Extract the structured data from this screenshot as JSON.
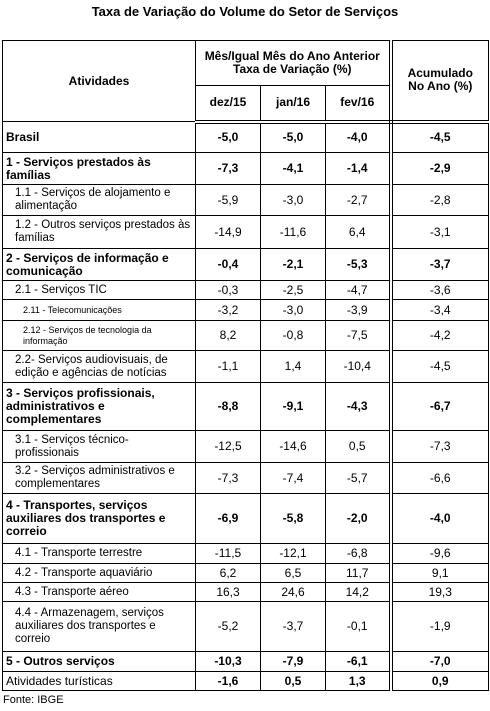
{
  "title": "Taxa de Variação do Volume do Setor de Serviços",
  "header": {
    "activities": "Atividades",
    "group": "Mês/Igual Mês do Ano Anterior",
    "group_sub": "Taxa de Variação (%)",
    "months": [
      "dez/15",
      "jan/16",
      "fev/16"
    ],
    "accumulated": [
      "Acumulado",
      "No Ano (%)"
    ]
  },
  "rows": [
    {
      "label": "Brasil",
      "values": [
        "-5,0",
        "-5,0",
        "-4,0"
      ],
      "accumulated": "-4,5"
    },
    {
      "label": "1 - Serviços prestados às famílias",
      "values": [
        "-7,3",
        "-4,1",
        "-1,4"
      ],
      "accumulated": "-2,9"
    },
    {
      "label": "1.1 - Serviços de alojamento e alimentação",
      "values": [
        "-5,9",
        "-3,0",
        "-2,7"
      ],
      "accumulated": "-2,8"
    },
    {
      "label": "1.2 - Outros serviços prestados às famílias",
      "values": [
        "-14,9",
        "-11,6",
        "6,4"
      ],
      "accumulated": "-3,1"
    },
    {
      "label": "2 - Serviços de informação e comunicação",
      "values": [
        "-0,4",
        "-2,1",
        "-5,3"
      ],
      "accumulated": "-3,7"
    },
    {
      "label": "2.1 - Serviços TIC",
      "values": [
        "-0,3",
        "-2,5",
        "-4,7"
      ],
      "accumulated": "-3,6"
    },
    {
      "label": "2.11 - Telecomunicações",
      "values": [
        "-3,2",
        "-3,0",
        "-3,9"
      ],
      "accumulated": "-3,4"
    },
    {
      "label": "2.12 - Serviços de tecnologia da informação",
      "values": [
        "8,2",
        "-0,8",
        "-7,5"
      ],
      "accumulated": "-4,2"
    },
    {
      "label": "2.2- Serviços audiovisuais, de edição e agências de notícias",
      "values": [
        "-1,1",
        "1,4",
        "-10,4"
      ],
      "accumulated": "-4,5"
    },
    {
      "label": "3 - Serviços profissionais, administrativos e complementares",
      "values": [
        "-8,8",
        "-9,1",
        "-4,3"
      ],
      "accumulated": "-6,7"
    },
    {
      "label": "3.1 - Serviços técnico-profissionais",
      "values": [
        "-12,5",
        "-14,6",
        "0,5"
      ],
      "accumulated": "-7,3"
    },
    {
      "label": "3.2 - Serviços administrativos e complementares",
      "values": [
        "-7,3",
        "-7,4",
        "-5,7"
      ],
      "accumulated": "-6,6"
    },
    {
      "label": "4 - Transportes, serviços auxiliares dos transportes e correio",
      "values": [
        "-6,9",
        "-5,8",
        "-2,0"
      ],
      "accumulated": "-4,0"
    },
    {
      "label": "4.1 - Transporte terrestre",
      "values": [
        "-11,5",
        "-12,1",
        "-6,8"
      ],
      "accumulated": "-9,6"
    },
    {
      "label": "4.2 - Transporte aquaviário",
      "values": [
        "6,2",
        "6,5",
        "11,7"
      ],
      "accumulated": "9,1"
    },
    {
      "label": "4.3 - Transporte aéreo",
      "values": [
        "16,3",
        "24,6",
        "14,2"
      ],
      "accumulated": "19,3"
    },
    {
      "label": "4.4 - Armazenagem, serviços auxiliares dos transportes e correio",
      "values": [
        "-5,2",
        "-3,7",
        "-0,1"
      ],
      "accumulated": "-1,9"
    },
    {
      "label": "5 - Outros serviços",
      "values": [
        "-10,3",
        "-7,9",
        "-6,1"
      ],
      "accumulated": "-7,0"
    },
    {
      "label": "Atividades turísticas",
      "values": [
        "-1,6",
        "0,5",
        "1,3"
      ],
      "accumulated": "0,9"
    }
  ],
  "source": "Fonte: IBGE"
}
